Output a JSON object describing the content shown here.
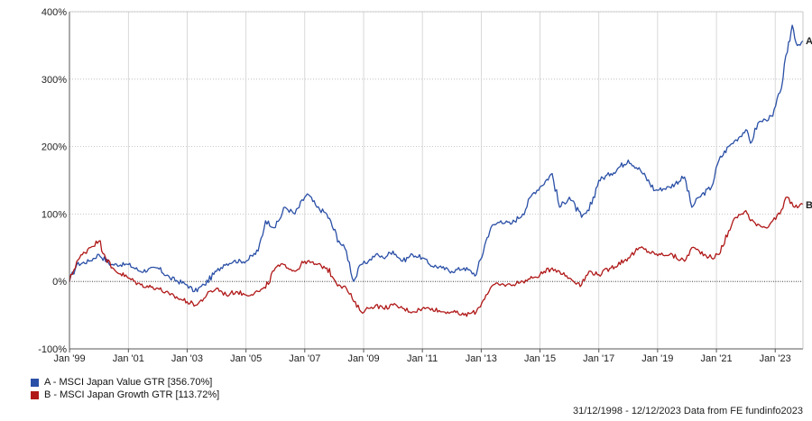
{
  "chart_data": {
    "type": "line",
    "title": "",
    "xlabel": "",
    "ylabel": "",
    "ylim": [
      -100,
      400
    ],
    "xlim": [
      "1998-12-31",
      "2023-12-12"
    ],
    "y_ticks": [
      -100,
      0,
      100,
      200,
      300,
      400
    ],
    "y_tick_labels": [
      "-100%",
      "0%",
      "100%",
      "200%",
      "300%",
      "400%"
    ],
    "x_ticks": [
      "1999-01-01",
      "2001-01-01",
      "2003-01-01",
      "2005-01-01",
      "2007-01-01",
      "2009-01-01",
      "2011-01-01",
      "2013-01-01",
      "2015-01-01",
      "2017-01-01",
      "2019-01-01",
      "2021-01-01",
      "2023-01-01"
    ],
    "x_tick_labels": [
      "Jan '99",
      "Jan '01",
      "Jan '03",
      "Jan '05",
      "Jan '07",
      "Jan '09",
      "Jan '11",
      "Jan '13",
      "Jan '15",
      "Jan '17",
      "Jan '19",
      "Jan '21",
      "Jan '23"
    ],
    "grid": true,
    "legend_position": "bottom-left",
    "series": [
      {
        "name": "A - MSCI Japan Value GTR [356.70%]",
        "end_label": "A",
        "color": "#2a4fa6",
        "x": [
          "1998-12-31",
          "1999-04-01",
          "1999-09-01",
          "2000-01-01",
          "2000-06-01",
          "2001-01-01",
          "2001-06-01",
          "2002-01-01",
          "2002-06-01",
          "2003-01-01",
          "2003-04-01",
          "2003-08-01",
          "2004-01-01",
          "2004-04-01",
          "2004-08-01",
          "2005-01-01",
          "2005-06-01",
          "2005-09-01",
          "2006-01-01",
          "2006-05-01",
          "2006-09-01",
          "2007-01-01",
          "2007-02-01",
          "2007-06-01",
          "2007-10-01",
          "2008-03-01",
          "2008-06-01",
          "2008-09-01",
          "2008-12-01",
          "2009-03-01",
          "2009-06-01",
          "2009-09-01",
          "2010-01-01",
          "2010-05-01",
          "2010-09-01",
          "2011-01-01",
          "2011-04-01",
          "2011-09-01",
          "2012-01-01",
          "2012-06-01",
          "2012-11-01",
          "2013-03-01",
          "2013-05-01",
          "2013-09-01",
          "2014-01-01",
          "2014-06-01",
          "2014-10-01",
          "2015-01-01",
          "2015-06-01",
          "2015-09-01",
          "2016-01-01",
          "2016-06-01",
          "2016-09-01",
          "2017-01-01",
          "2017-06-01",
          "2018-01-01",
          "2018-06-01",
          "2018-12-01",
          "2019-06-01",
          "2019-12-01",
          "2020-03-01",
          "2020-06-01",
          "2020-11-01",
          "2021-02-01",
          "2021-06-01",
          "2021-09-01",
          "2022-01-01",
          "2022-03-01",
          "2022-06-01",
          "2022-09-01",
          "2022-12-01",
          "2023-03-01",
          "2023-06-01",
          "2023-08-01",
          "2023-10-01",
          "2023-12-12"
        ],
        "values": [
          0,
          25,
          30,
          40,
          25,
          25,
          15,
          20,
          5,
          -5,
          -15,
          -5,
          15,
          25,
          30,
          30,
          45,
          90,
          80,
          110,
          100,
          125,
          130,
          110,
          100,
          60,
          45,
          0,
          25,
          30,
          40,
          35,
          45,
          30,
          40,
          35,
          25,
          20,
          15,
          20,
          10,
          60,
          80,
          90,
          85,
          100,
          130,
          140,
          160,
          110,
          125,
          95,
          105,
          150,
          160,
          180,
          165,
          135,
          140,
          155,
          110,
          125,
          140,
          180,
          200,
          210,
          225,
          205,
          235,
          240,
          245,
          280,
          340,
          380,
          350,
          357
        ]
      },
      {
        "name": "B - MSCI Japan Growth GTR [113.72%]",
        "end_label": "B",
        "color": "#b01818",
        "x": [
          "1998-12-31",
          "1999-04-01",
          "1999-09-01",
          "2000-01-01",
          "2000-06-01",
          "2001-01-01",
          "2001-06-01",
          "2002-01-01",
          "2002-06-01",
          "2003-01-01",
          "2003-05-01",
          "2003-09-01",
          "2004-01-01",
          "2004-05-01",
          "2004-09-01",
          "2005-01-01",
          "2005-06-01",
          "2005-09-01",
          "2006-01-01",
          "2006-05-01",
          "2006-09-01",
          "2007-01-01",
          "2007-06-01",
          "2007-10-01",
          "2008-03-01",
          "2008-06-01",
          "2008-09-01",
          "2008-12-01",
          "2009-03-01",
          "2009-06-01",
          "2009-09-01",
          "2010-01-01",
          "2010-05-01",
          "2010-09-01",
          "2011-01-01",
          "2011-05-01",
          "2011-09-01",
          "2012-01-01",
          "2012-06-01",
          "2012-11-01",
          "2013-03-01",
          "2013-06-01",
          "2014-01-01",
          "2014-06-01",
          "2014-10-01",
          "2015-01-01",
          "2015-06-01",
          "2015-09-01",
          "2016-01-01",
          "2016-06-01",
          "2016-09-01",
          "2017-01-01",
          "2017-06-01",
          "2018-01-01",
          "2018-06-01",
          "2018-12-01",
          "2019-06-01",
          "2019-12-01",
          "2020-03-01",
          "2020-06-01",
          "2020-11-01",
          "2021-02-01",
          "2021-06-01",
          "2021-09-01",
          "2022-01-01",
          "2022-03-01",
          "2022-06-01",
          "2022-09-01",
          "2022-12-01",
          "2023-03-01",
          "2023-06-01",
          "2023-09-01",
          "2023-12-12"
        ],
        "values": [
          0,
          30,
          50,
          60,
          20,
          5,
          -5,
          -10,
          -20,
          -30,
          -35,
          -20,
          -10,
          -20,
          -15,
          -20,
          -15,
          -10,
          20,
          25,
          15,
          30,
          25,
          20,
          -5,
          -10,
          -30,
          -45,
          -40,
          -35,
          -40,
          -35,
          -40,
          -45,
          -40,
          -40,
          -45,
          -45,
          -50,
          -45,
          -20,
          -5,
          -5,
          0,
          5,
          10,
          20,
          15,
          5,
          -5,
          15,
          10,
          20,
          35,
          50,
          40,
          40,
          30,
          50,
          45,
          35,
          40,
          75,
          95,
          105,
          90,
          85,
          80,
          90,
          100,
          125,
          110,
          114
        ]
      }
    ]
  },
  "footer": "31/12/1998 - 12/12/2023 Data from FE fundinfo2023"
}
